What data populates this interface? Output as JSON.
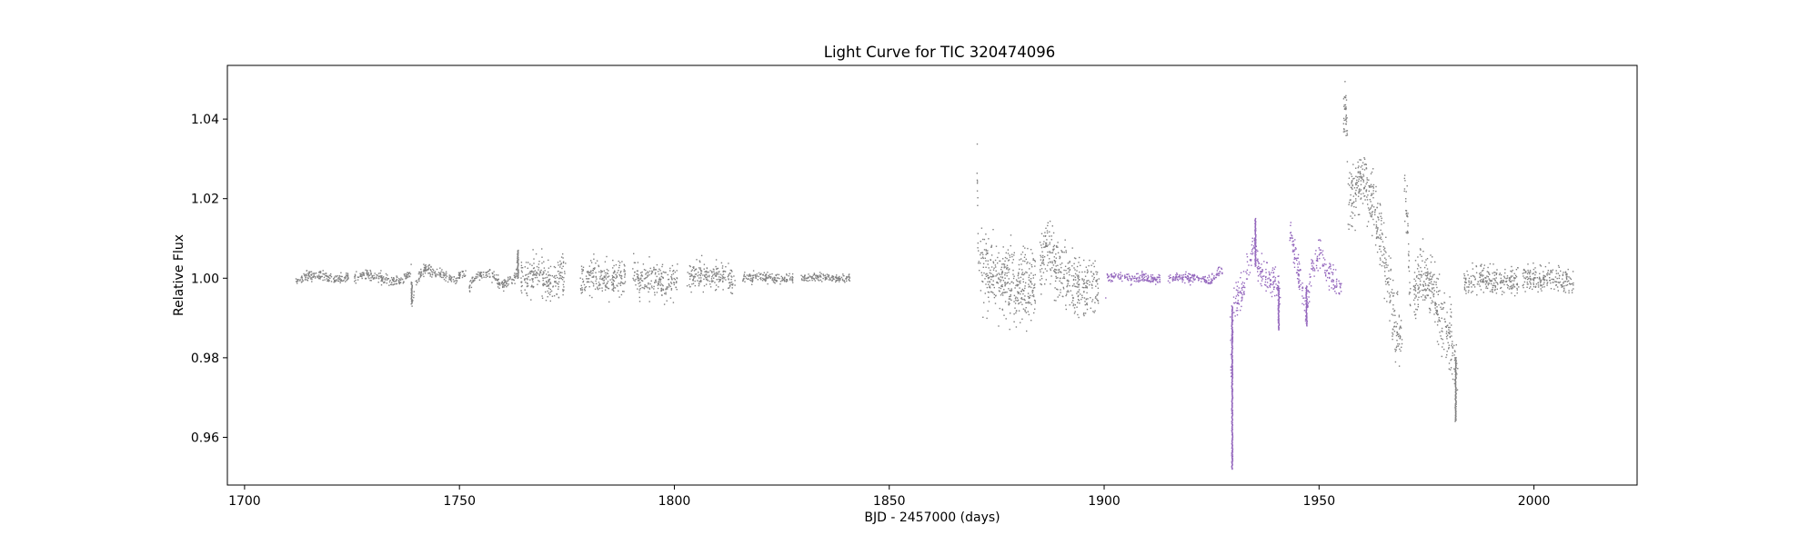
{
  "chart_data": {
    "type": "scatter",
    "title": "Light Curve for TIC 320474096",
    "xlabel": "BJD - 2457000 (days)",
    "ylabel": "Relative Flux",
    "xlim": [
      1696,
      2024
    ],
    "ylim": [
      0.948,
      1.0535
    ],
    "xticks": [
      1700,
      1750,
      1800,
      1850,
      1900,
      1950,
      2000
    ],
    "yticks": [
      0.96,
      0.98,
      1.0,
      1.02,
      1.04
    ],
    "xtick_labels": [
      "1700",
      "1750",
      "1800",
      "1850",
      "1900",
      "1950",
      "2000"
    ],
    "ytick_labels": [
      "0.96",
      "0.98",
      "1.00",
      "1.02",
      "1.04"
    ],
    "grid": false,
    "colors": {
      "default": "#808080",
      "highlight": "#9467bd"
    },
    "series": [
      {
        "color": "default",
        "segments": [
          {
            "x": [
              1711.8,
              1724.2
            ],
            "anchors": [
              [
                1711.8,
                0.999
              ],
              [
                1715,
                1.0005
              ],
              [
                1718,
                1.0008
              ],
              [
                1721,
                0.9995
              ],
              [
                1724.2,
                1.0002
              ]
            ],
            "noise": 0.0007
          },
          {
            "x": [
              1725.5,
              1738.8
            ],
            "anchors": [
              [
                1725.5,
                1.0
              ],
              [
                1729,
                1.0008
              ],
              [
                1733,
                0.9998
              ],
              [
                1736,
                0.9993
              ],
              [
                1738.8,
                1.002
              ]
            ],
            "noise": 0.0007
          },
          {
            "x": [
              1738.9,
              1751.5
            ],
            "anchors": [
              [
                1738.9,
                0.9935
              ],
              [
                1740,
                0.9995
              ],
              [
                1742,
                1.0025
              ],
              [
                1746,
                1.0008
              ],
              [
                1749,
                0.9998
              ],
              [
                1751.5,
                1.001
              ]
            ],
            "noise": 0.0007
          },
          {
            "x": [
              1752.3,
              1763.8
            ],
            "anchors": [
              [
                1752.3,
                0.998
              ],
              [
                1754,
                1.0008
              ],
              [
                1757,
                1.001
              ],
              [
                1760,
                0.9985
              ],
              [
                1763,
                1.0005
              ],
              [
                1763.8,
                1.0055
              ]
            ],
            "noise": 0.0007
          },
          {
            "x": [
              1764.3,
              1774.7
            ],
            "anchors": [
              [
                1764.3,
                1.0
              ],
              [
                1768,
                1.0015
              ],
              [
                1771,
                0.9985
              ],
              [
                1774.7,
                1.0005
              ]
            ],
            "noise": 0.0025
          },
          {
            "x": [
              1778.0,
              1788.6
            ],
            "anchors": [
              [
                1778,
                0.9995
              ],
              [
                1781,
                1.001
              ],
              [
                1784,
                0.9992
              ],
              [
                1788.6,
                1.0005
              ]
            ],
            "noise": 0.0022
          },
          {
            "x": [
              1790.3,
              1800.8
            ],
            "anchors": [
              [
                1790.3,
                1.0025
              ],
              [
                1792,
                0.999
              ],
              [
                1795,
                1.0
              ],
              [
                1798,
                0.9985
              ],
              [
                1800.8,
                1.0
              ]
            ],
            "noise": 0.002
          },
          {
            "x": [
              1803.0,
              1814.2
            ],
            "anchors": [
              [
                1803,
                1.0
              ],
              [
                1806,
                1.0012
              ],
              [
                1809,
                1.0
              ],
              [
                1812,
                1.0015
              ],
              [
                1814.2,
                0.9985
              ]
            ],
            "noise": 0.0016
          },
          {
            "x": [
              1815.8,
              1827.7
            ],
            "anchors": [
              [
                1815.8,
                1.0
              ],
              [
                1820,
                1.0003
              ],
              [
                1824,
                0.9998
              ],
              [
                1827.7,
                1.0
              ]
            ],
            "noise": 0.0006
          },
          {
            "x": [
              1829.5,
              1840.8
            ],
            "anchors": [
              [
                1829.5,
                1.0
              ],
              [
                1834,
                1.0003
              ],
              [
                1838,
                0.9998
              ],
              [
                1840.8,
                1.0002
              ]
            ],
            "noise": 0.0005
          },
          {
            "x": [
              1870.4,
              1884.0
            ],
            "anchors": [
              [
                1870.4,
                1.025
              ],
              [
                1870.8,
                1.004
              ],
              [
                1873,
                1.002
              ],
              [
                1876,
                0.9995
              ],
              [
                1880,
                0.998
              ],
              [
                1884,
                0.9985
              ]
            ],
            "noise": 0.0045
          },
          {
            "x": [
              1885.0,
              1898.8
            ],
            "anchors": [
              [
                1885,
                1.004
              ],
              [
                1887,
                1.007
              ],
              [
                1890,
                1.002
              ],
              [
                1893,
                0.999
              ],
              [
                1896,
                0.9975
              ],
              [
                1898.8,
                0.9975
              ]
            ],
            "noise": 0.0035
          },
          {
            "x": [
              1955.7,
              1956.6
            ],
            "anchors": [
              [
                1955.7,
                1.04
              ],
              [
                1956.1,
                1.045
              ],
              [
                1956.6,
                1.035
              ]
            ],
            "noise": 0.003
          },
          {
            "x": [
              1956.7,
              1969.3
            ],
            "anchors": [
              [
                1956.7,
                1.018
              ],
              [
                1958,
                1.02
              ],
              [
                1960,
                1.026
              ],
              [
                1962,
                1.02
              ],
              [
                1964,
                1.012
              ],
              [
                1966,
                1.0
              ],
              [
                1968,
                0.986
              ],
              [
                1969.3,
                0.985
              ]
            ],
            "noise": 0.004
          },
          {
            "x": [
              1969.8,
              1971.3
            ],
            "anchors": [
              [
                1969.8,
                1.022
              ],
              [
                1970.4,
                1.018
              ],
              [
                1971.3,
                0.995
              ]
            ],
            "noise": 0.003
          },
          {
            "x": [
              1972.0,
              1982.3
            ],
            "anchors": [
              [
                1972,
                0.996
              ],
              [
                1974,
                1.001
              ],
              [
                1976,
                0.998
              ],
              [
                1978,
                0.992
              ],
              [
                1980,
                0.986
              ],
              [
                1982.3,
                0.98
              ]
            ],
            "noise": 0.004
          },
          {
            "x": [
              1983.7,
              1996.5
            ],
            "anchors": [
              [
                1983.7,
                0.9985
              ],
              [
                1988,
                1.0
              ],
              [
                1992,
                0.999
              ],
              [
                1996.5,
                0.9995
              ]
            ],
            "noise": 0.0017
          },
          {
            "x": [
              1997.3,
              2009.3
            ],
            "anchors": [
              [
                1997.3,
                1.0
              ],
              [
                2002,
                1.0
              ],
              [
                2006,
                0.9995
              ],
              [
                2009.3,
                0.999
              ]
            ],
            "noise": 0.0015
          }
        ]
      },
      {
        "color": "highlight",
        "segments": [
          {
            "x": [
              1900.3,
              1913.0
            ],
            "anchors": [
              [
                1900.3,
                0.995
              ],
              [
                1900.7,
                1.0
              ],
              [
                1903,
                1.0005
              ],
              [
                1906,
                1.0
              ],
              [
                1909,
                1.0003
              ],
              [
                1913,
                0.9995
              ]
            ],
            "noise": 0.0006
          },
          {
            "x": [
              1914.8,
              1927.5
            ],
            "anchors": [
              [
                1914.8,
                1.0
              ],
              [
                1918,
                1.0003
              ],
              [
                1922,
                0.9998
              ],
              [
                1925,
                0.9995
              ],
              [
                1927.5,
                1.002
              ]
            ],
            "noise": 0.0006
          },
          {
            "x": [
              1929.3,
              1941.0
            ],
            "anchors": [
              [
                1929.3,
                0.99
              ],
              [
                1929.6,
                0.975
              ],
              [
                1930.2,
                0.993
              ],
              [
                1932,
                0.996
              ],
              [
                1934,
                1.005
              ],
              [
                1935,
                1.01
              ],
              [
                1936,
                1.003
              ],
              [
                1938,
                1.0
              ],
              [
                1940,
                0.999
              ],
              [
                1941,
                0.995
              ]
            ],
            "noise": 0.002
          },
          {
            "x": [
              1943.2,
              1955.3
            ],
            "anchors": [
              [
                1943.2,
                1.012
              ],
              [
                1944.5,
                1.005
              ],
              [
                1946,
                0.998
              ],
              [
                1947,
                0.992
              ],
              [
                1948.5,
                1.003
              ],
              [
                1950,
                1.006
              ],
              [
                1952,
                1.001
              ],
              [
                1954,
                0.999
              ],
              [
                1955.3,
                0.997
              ]
            ],
            "noise": 0.0018
          }
        ]
      }
    ],
    "spikes": [
      {
        "color": "highlight",
        "x": 1929.8,
        "y_range": [
          0.952,
          0.993
        ]
      },
      {
        "color": "highlight",
        "x": 1935.2,
        "y_range": [
          1.003,
          1.015
        ]
      },
      {
        "color": "highlight",
        "x": 1940.6,
        "y_range": [
          0.987,
          0.998
        ]
      },
      {
        "color": "highlight",
        "x": 1947.1,
        "y_range": [
          0.988,
          0.998
        ]
      },
      {
        "color": "default",
        "x": 1738.9,
        "y_range": [
          0.9935,
          0.999
        ]
      },
      {
        "color": "default",
        "x": 1763.6,
        "y_range": [
          1.0,
          1.007
        ]
      },
      {
        "color": "default",
        "x": 1981.8,
        "y_range": [
          0.964,
          0.98
        ]
      }
    ]
  }
}
